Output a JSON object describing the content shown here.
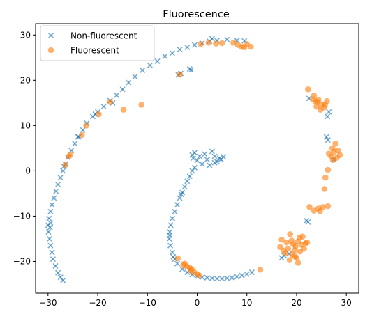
{
  "chart_data": {
    "type": "scatter",
    "title": "Fluorescence",
    "xlabel": "",
    "ylabel": "",
    "xlim": [
      -32.5,
      32.5
    ],
    "ylim": [
      -27,
      32.5
    ],
    "xticks": [
      -30,
      -20,
      -10,
      0,
      10,
      20,
      30
    ],
    "yticks": [
      -20,
      -10,
      0,
      10,
      20,
      30
    ],
    "grid": false,
    "legend_position": "upper-left",
    "series": [
      {
        "name": "Non-fluorescent",
        "marker": "x",
        "color": "#1f77b4",
        "points": [
          [
            -27,
            -24.2
          ],
          [
            -27.5,
            -23.5
          ],
          [
            -28,
            -22.5
          ],
          [
            -28.5,
            -21
          ],
          [
            -29,
            -19.5
          ],
          [
            -29.2,
            -18
          ],
          [
            -29.5,
            -16.5
          ],
          [
            -29.7,
            -15
          ],
          [
            -29.9,
            -13.5
          ],
          [
            -30,
            -12
          ],
          [
            -29.8,
            -10.5
          ],
          [
            -29.5,
            -9
          ],
          [
            -29.2,
            -7.5
          ],
          [
            -28.8,
            -6
          ],
          [
            -28.4,
            -4.5
          ],
          [
            -28,
            -3
          ],
          [
            -27.5,
            -1.5
          ],
          [
            -27,
            0
          ],
          [
            -26.5,
            1.5
          ],
          [
            -26,
            3
          ],
          [
            -25.3,
            4.5
          ],
          [
            -24.6,
            6
          ],
          [
            -23.8,
            7.5
          ],
          [
            -23,
            9
          ],
          [
            -22.2,
            10.5
          ],
          [
            -21,
            12
          ],
          [
            -20,
            13
          ],
          [
            -18.8,
            14.2
          ],
          [
            -17.5,
            15.5
          ],
          [
            -16.2,
            16.7
          ],
          [
            -15,
            18
          ],
          [
            -13.8,
            19.5
          ],
          [
            -12.5,
            20.8
          ],
          [
            -11,
            22.2
          ],
          [
            -9.5,
            23.3
          ],
          [
            -8,
            24.2
          ],
          [
            -6.5,
            25.3
          ],
          [
            -5,
            26
          ],
          [
            -3.5,
            26.8
          ],
          [
            -2,
            27.3
          ],
          [
            -0.5,
            27.8
          ],
          [
            1,
            28.2
          ],
          [
            2.5,
            28.6
          ],
          [
            4,
            28.8
          ],
          [
            6,
            29
          ],
          [
            8,
            28.8
          ],
          [
            9.5,
            28.7
          ],
          [
            3,
            29.2
          ],
          [
            -3.8,
            21.2
          ],
          [
            -3.3,
            21.5
          ],
          [
            -1.5,
            22.5
          ],
          [
            -1.2,
            22.3
          ],
          [
            -20.5,
            12.5
          ],
          [
            -17,
            15
          ],
          [
            -24,
            7.5
          ],
          [
            -26.8,
            1
          ],
          [
            -29.5,
            -11.5
          ],
          [
            -29.6,
            -12.5
          ],
          [
            -1,
            3.5
          ],
          [
            -0.5,
            4
          ],
          [
            0.5,
            3.2
          ],
          [
            1.5,
            3.7
          ],
          [
            2,
            2.5
          ],
          [
            3,
            4.3
          ],
          [
            3.5,
            3.2
          ],
          [
            4,
            2
          ],
          [
            4.5,
            2.8
          ],
          [
            5.3,
            3.1
          ],
          [
            1,
            1.5
          ],
          [
            2.5,
            1.2
          ],
          [
            0,
            2.3
          ],
          [
            -0.8,
            2.8
          ],
          [
            3.5,
            1.8
          ],
          [
            4.8,
            2.5
          ],
          [
            -1,
            0
          ],
          [
            -1.5,
            -1.2
          ],
          [
            -2,
            -2.3
          ],
          [
            -2.5,
            -3.5
          ],
          [
            -3,
            -4.8
          ],
          [
            -3.5,
            -6
          ],
          [
            -4,
            -7.5
          ],
          [
            -4.5,
            -9
          ],
          [
            -5,
            -10.5
          ],
          [
            -5.3,
            -12
          ],
          [
            -5.5,
            -13.5
          ],
          [
            -5.6,
            -15
          ],
          [
            -5.4,
            -16.5
          ],
          [
            -5,
            -18
          ],
          [
            -4.5,
            -19.5
          ],
          [
            -4,
            -20.5
          ],
          [
            -3,
            -21.7
          ],
          [
            -2,
            -22.4
          ],
          [
            -1,
            -22.9
          ],
          [
            0,
            -23.3
          ],
          [
            1,
            -23.5
          ],
          [
            2,
            -23.6
          ],
          [
            3,
            -23.7
          ],
          [
            4,
            -23.8
          ],
          [
            5,
            -23.8
          ],
          [
            6,
            -23.7
          ],
          [
            7,
            -23.6
          ],
          [
            8,
            -23.4
          ],
          [
            9,
            -23.1
          ],
          [
            10,
            -22.8
          ],
          [
            11,
            -22.4
          ],
          [
            -0.5,
            0.7
          ],
          [
            -3.2,
            -5.2
          ],
          [
            -5.5,
            -14.2
          ],
          [
            -4.8,
            -19
          ],
          [
            22,
            -11
          ],
          [
            22.3,
            -11.3
          ],
          [
            17,
            -19.2
          ],
          [
            17.5,
            -18.7
          ],
          [
            18.5,
            -18.3
          ],
          [
            26.5,
            13
          ],
          [
            26.2,
            12
          ],
          [
            26,
            7.5
          ],
          [
            26.3,
            6.8
          ],
          [
            27.5,
            2.5
          ],
          [
            22.5,
            16
          ]
        ]
      },
      {
        "name": "Fluorescent",
        "marker": "o",
        "color": "#ff7f0e",
        "points": [
          [
            0.7,
            28
          ],
          [
            2.3,
            28.3
          ],
          [
            3.8,
            28.1
          ],
          [
            5,
            28.2
          ],
          [
            7.3,
            28.3
          ],
          [
            8.2,
            27.8
          ],
          [
            9,
            27.4
          ],
          [
            10,
            28
          ],
          [
            10.8,
            27.4
          ],
          [
            9.5,
            27.3
          ],
          [
            -3.5,
            21.3
          ],
          [
            -11.2,
            14.6
          ],
          [
            -14.8,
            13.5
          ],
          [
            -17.5,
            15.2
          ],
          [
            -19.8,
            12.5
          ],
          [
            -22.3,
            10
          ],
          [
            -23.2,
            7.9
          ],
          [
            -25.5,
            3.6
          ],
          [
            -26.5,
            1.3
          ],
          [
            -25.8,
            3.2
          ],
          [
            22.3,
            18
          ],
          [
            23.5,
            16.6
          ],
          [
            24.4,
            15.7
          ],
          [
            23.8,
            15.3
          ],
          [
            25,
            14.7
          ],
          [
            26.1,
            15.4
          ],
          [
            25.5,
            14
          ],
          [
            24.8,
            13.5
          ],
          [
            24,
            14.2
          ],
          [
            23.3,
            15.8
          ],
          [
            25.7,
            14.6
          ],
          [
            24.2,
            15.2
          ],
          [
            27.8,
            6
          ],
          [
            27.2,
            5
          ],
          [
            28.3,
            4.5
          ],
          [
            27.5,
            4.2
          ],
          [
            28.7,
            3.5
          ],
          [
            27,
            3.1
          ],
          [
            26.5,
            3.8
          ],
          [
            28.1,
            2.9
          ],
          [
            27.3,
            2.4
          ],
          [
            26.3,
            0.2
          ],
          [
            25.8,
            -1.5
          ],
          [
            25.6,
            -4
          ],
          [
            22.6,
            -8
          ],
          [
            23.5,
            -8.8
          ],
          [
            24.4,
            -8.3
          ],
          [
            25.3,
            -8
          ],
          [
            26.3,
            -7.8
          ],
          [
            24.7,
            -8.9
          ],
          [
            17,
            -15.2
          ],
          [
            18,
            -15.8
          ],
          [
            18.7,
            -14
          ],
          [
            19.3,
            -16.2
          ],
          [
            20.3,
            -15.6
          ],
          [
            21.2,
            -14.5
          ],
          [
            21.8,
            -16
          ],
          [
            19.6,
            -17.5
          ],
          [
            18.3,
            -17.2
          ],
          [
            16.7,
            -16.8
          ],
          [
            20.7,
            -17.8
          ],
          [
            21.5,
            -17.2
          ],
          [
            22.1,
            -15.8
          ],
          [
            19.1,
            -18.5
          ],
          [
            20,
            -19.2
          ],
          [
            18.6,
            -19.7
          ],
          [
            17.7,
            -18.2
          ],
          [
            20.3,
            -20.3
          ],
          [
            19.8,
            -16.6
          ],
          [
            19,
            -15.4
          ],
          [
            20.6,
            -14.7
          ],
          [
            17.4,
            -17.6
          ],
          [
            19.7,
            -18.9
          ],
          [
            21,
            -16.3
          ],
          [
            -3.9,
            -19.3
          ],
          [
            -2.5,
            -20.5
          ],
          [
            -2.1,
            -21.1
          ],
          [
            -1.5,
            -21.4
          ],
          [
            -1.1,
            -21.7
          ],
          [
            -0.6,
            -22.4
          ],
          [
            0.1,
            -22.8
          ],
          [
            0.4,
            -23.1
          ],
          [
            -2.8,
            -20.8
          ],
          [
            -1.3,
            -22
          ],
          [
            12.7,
            -21.8
          ]
        ]
      }
    ]
  }
}
